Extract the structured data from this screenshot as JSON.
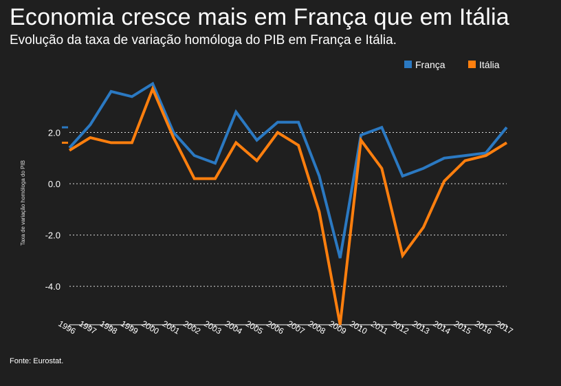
{
  "title": "Economia cresce mais em França que em Itália",
  "subtitle": "Evolução da taxa de variação homóloga do PIB em França e Itália.",
  "source": "Fonte: Eurostat.",
  "colors": {
    "background": "#1f1f1f",
    "franca": "#2b79c2",
    "italia": "#ff7f0e",
    "text": "#ffffff",
    "grid": "#ffffff"
  },
  "chart_data": {
    "type": "line",
    "title": "",
    "xlabel": "",
    "ylabel": "Taxa de variação homóloga do PIB",
    "x": [
      "1996",
      "1997",
      "1998",
      "1999",
      "2000",
      "2001",
      "2002",
      "2003",
      "2004",
      "2005",
      "2006",
      "2007",
      "2008",
      "2009",
      "2010",
      "2011",
      "2012",
      "2013",
      "2014",
      "2015",
      "2016",
      "2017"
    ],
    "ylim": [
      -5.5,
      4.0
    ],
    "yticks": [
      2.0,
      0.0,
      -2.0,
      -4.0
    ],
    "ytick_labels": [
      "2.0",
      "0.0",
      "-2.0",
      "-4.0"
    ],
    "grid": "horizontal dotted",
    "legend": "top-right",
    "series": [
      {
        "name": "França",
        "color": "#2b79c2",
        "values": [
          1.4,
          2.3,
          3.6,
          3.4,
          3.9,
          2.0,
          1.1,
          0.8,
          2.8,
          1.7,
          2.4,
          2.4,
          0.3,
          -2.9,
          1.9,
          2.2,
          0.3,
          0.6,
          1.0,
          1.1,
          1.2,
          2.2
        ]
      },
      {
        "name": "Itália",
        "color": "#ff7f0e",
        "values": [
          1.3,
          1.8,
          1.6,
          1.6,
          3.7,
          1.8,
          0.2,
          0.2,
          1.6,
          0.9,
          2.0,
          1.5,
          -1.1,
          -5.5,
          1.7,
          0.6,
          -2.8,
          -1.7,
          0.1,
          0.9,
          1.1,
          1.6
        ]
      }
    ]
  }
}
